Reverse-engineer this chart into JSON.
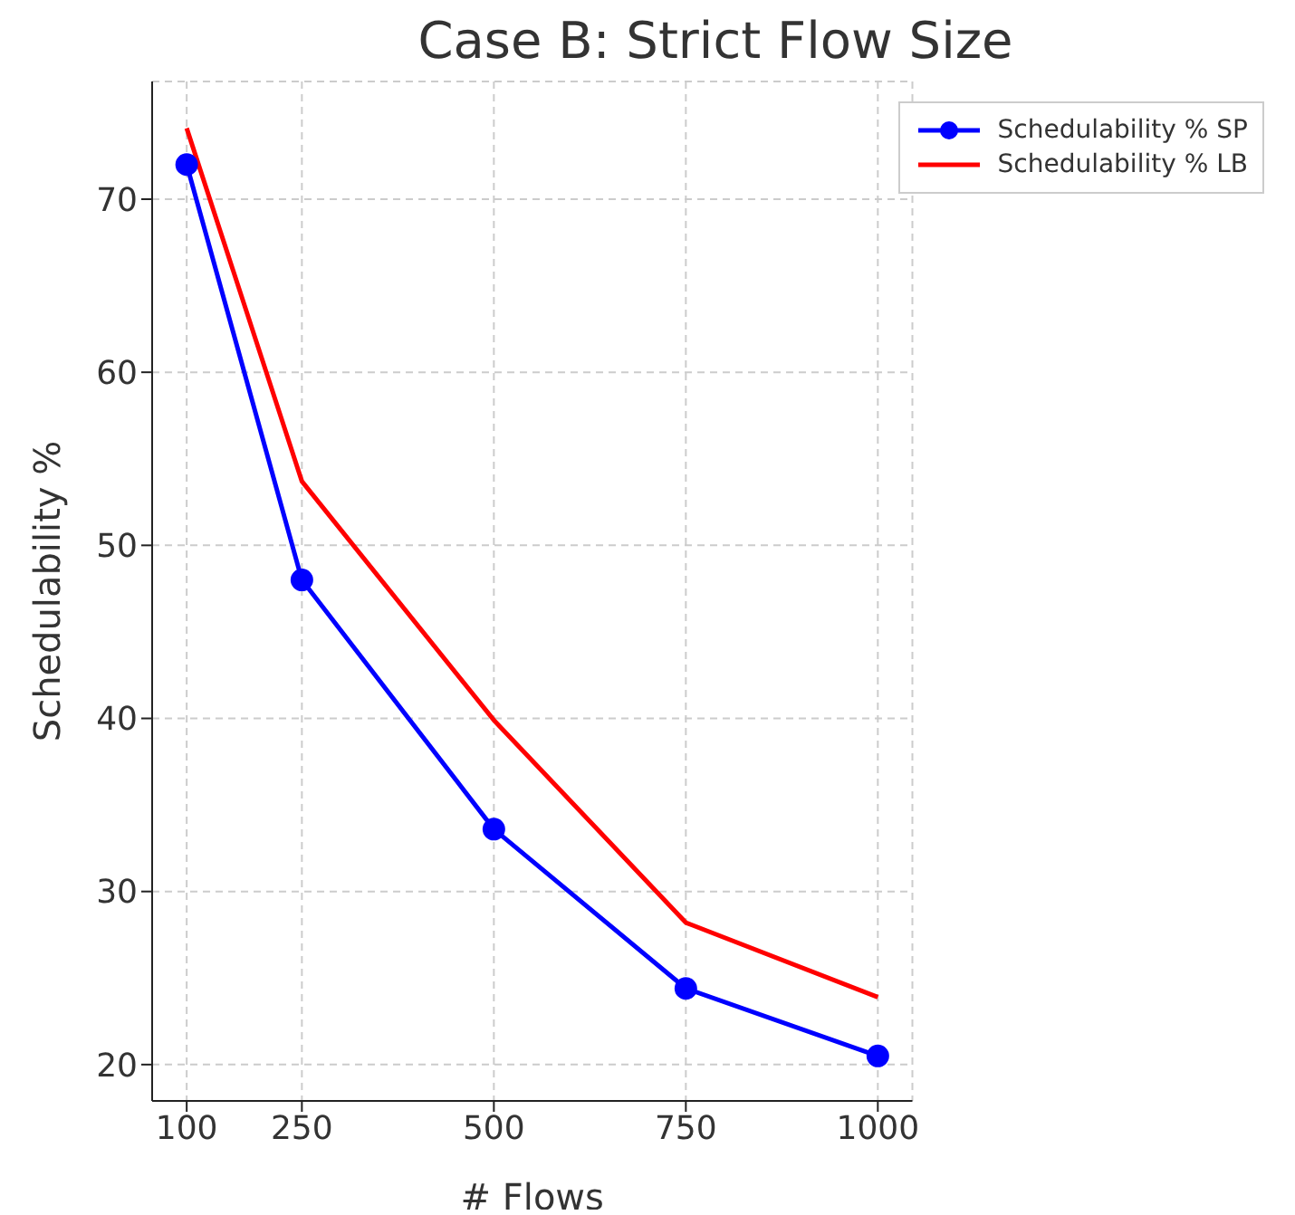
{
  "chart_data": {
    "type": "line",
    "title": "Case B: Strict Flow Size",
    "xlabel": "# Flows",
    "ylabel": "Schedulability %",
    "x": [
      100,
      250,
      500,
      750,
      1000
    ],
    "series": [
      {
        "name": "Schedulability % SP",
        "color": "#0000ff",
        "marker": "circle",
        "values": [
          72,
          48,
          33.6,
          24.4,
          20.5
        ]
      },
      {
        "name": "Schedulability % LB",
        "color": "#ff0000",
        "marker": "none",
        "values": [
          74.1,
          53.7,
          39.9,
          28.2,
          23.9
        ]
      }
    ],
    "xlim": [
      55,
      1045
    ],
    "ylim": [
      17.9,
      76.8
    ],
    "xticks": [
      100,
      250,
      500,
      750,
      1000
    ],
    "yticks": [
      20,
      30,
      40,
      50,
      60,
      70
    ],
    "grid": true,
    "legend": "top right",
    "line_style": "solid"
  }
}
